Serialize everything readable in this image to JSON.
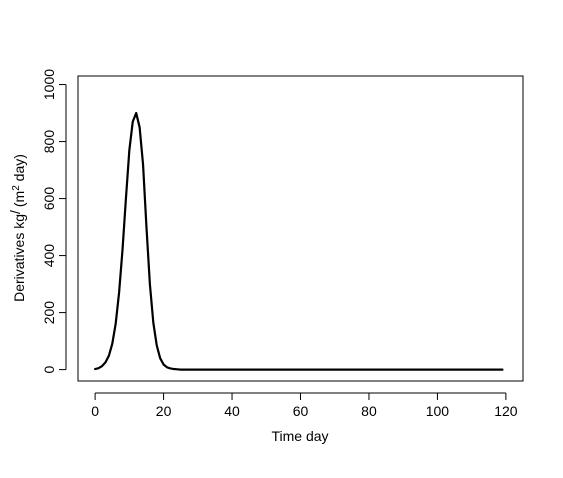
{
  "chart_data": {
    "type": "line",
    "title": "",
    "xlabel": "Time day",
    "ylabel": {
      "prefix": "Derivatives kg",
      "slash": "/",
      "open_paren": "(m",
      "superscript": "2",
      "suffix": " day)"
    },
    "xlim": [
      -5,
      125
    ],
    "ylim": [
      -40,
      1030
    ],
    "x_ticks": [
      0,
      20,
      40,
      60,
      80,
      100,
      120
    ],
    "y_ticks": [
      0,
      200,
      400,
      600,
      800,
      1000
    ],
    "grid": false,
    "colors": {
      "line": "#000000",
      "axis": "#000000",
      "background": "#ffffff"
    },
    "series": [
      {
        "x": [
          0,
          1,
          2,
          3,
          4,
          5,
          6,
          7,
          8,
          9,
          10,
          11,
          12,
          13,
          14,
          15,
          16,
          17,
          18,
          19,
          20,
          21,
          22,
          23,
          24,
          25,
          30,
          40,
          50,
          60,
          70,
          80,
          90,
          100,
          110,
          119
        ],
        "y": [
          2,
          5,
          12,
          25,
          48,
          90,
          160,
          270,
          420,
          600,
          770,
          870,
          900,
          850,
          720,
          500,
          300,
          165,
          85,
          40,
          18,
          8,
          4,
          2,
          1,
          0,
          0,
          0,
          0,
          0,
          0,
          0,
          0,
          0,
          0,
          0
        ]
      }
    ]
  }
}
